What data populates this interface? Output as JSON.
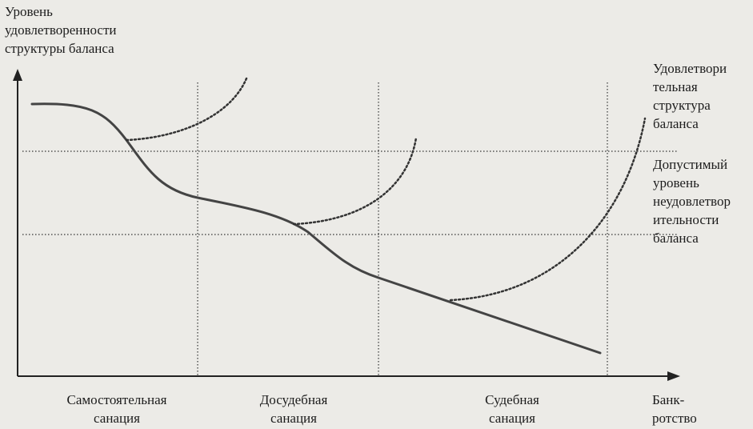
{
  "y_axis_title": [
    "Уровень",
    "удовлетворенности",
    "структуры баланса"
  ],
  "levels": {
    "satisfactory": [
      "Удовлетвори",
      "тельная",
      "структура",
      "баланса"
    ],
    "acceptable": [
      "Допустимый",
      "уровень",
      "неудовлетвор",
      "ительности",
      "баланса"
    ]
  },
  "stages": [
    {
      "lines": [
        "Самостоятельная",
        "санация"
      ]
    },
    {
      "lines": [
        "Досудебная",
        "санация"
      ]
    },
    {
      "lines": [
        "Судебная",
        "санация"
      ]
    },
    {
      "lines": [
        "Банк-",
        "ротство"
      ]
    }
  ],
  "colors": {
    "curve": "#444444",
    "dotted": "#333333",
    "axis": "#222222",
    "background": "#ecebe7"
  }
}
